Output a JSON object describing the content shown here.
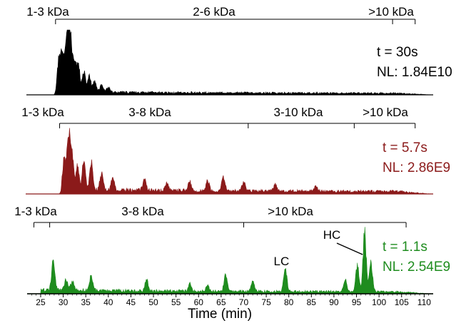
{
  "chart_data": {
    "type": "area",
    "xlabel": "Time (min)",
    "xlim": [
      22,
      112
    ],
    "xticks": [
      25,
      30,
      35,
      40,
      45,
      50,
      55,
      60,
      65,
      70,
      75,
      80,
      85,
      90,
      95,
      100,
      105,
      110
    ],
    "panels": [
      {
        "t_label": "t = 30s",
        "nl_label": "NL: 1.84E10",
        "color": "#000000",
        "trace_start": 28,
        "ranges": [
          {
            "label": "1-3 kDa",
            "start": 28.3,
            "end": 28.3
          },
          {
            "label": "2-6 kDa",
            "start": 28.3,
            "end": 103
          },
          {
            "label": ">10 kDa",
            "start": 103,
            "end": 108
          }
        ],
        "peaks": [
          {
            "x": 29.0,
            "h": 0.55
          },
          {
            "x": 29.8,
            "h": 0.7
          },
          {
            "x": 30.6,
            "h": 0.58
          },
          {
            "x": 31.2,
            "h": 1.0
          },
          {
            "x": 31.8,
            "h": 0.62
          },
          {
            "x": 32.6,
            "h": 0.5
          },
          {
            "x": 33.4,
            "h": 0.44
          },
          {
            "x": 34.6,
            "h": 0.36
          },
          {
            "x": 35.8,
            "h": 0.28
          },
          {
            "x": 37.0,
            "h": 0.2
          },
          {
            "x": 38.5,
            "h": 0.14
          },
          {
            "x": 40.0,
            "h": 0.1
          }
        ],
        "baseline": 0.04
      },
      {
        "t_label": "t = 5.7s",
        "nl_label": "NL: 2.86E9",
        "color": "#8b1a1a",
        "trace_start": 29,
        "ranges": [
          {
            "label": "1-3 kDa",
            "start": 29.2,
            "end": 29.2
          },
          {
            "label": "3-8 kDa",
            "start": 29.2,
            "end": 71
          },
          {
            "label": "3-10 kDa",
            "start": 71,
            "end": 94.5
          },
          {
            "label": ">10 kDa",
            "start": 94.5,
            "end": 108
          }
        ],
        "peaks": [
          {
            "x": 30.2,
            "h": 0.5
          },
          {
            "x": 31.2,
            "h": 1.0
          },
          {
            "x": 32.0,
            "h": 0.6
          },
          {
            "x": 33.2,
            "h": 0.42
          },
          {
            "x": 34.6,
            "h": 0.52
          },
          {
            "x": 36.2,
            "h": 0.46
          },
          {
            "x": 38.5,
            "h": 0.3
          },
          {
            "x": 41.0,
            "h": 0.2
          },
          {
            "x": 48.0,
            "h": 0.2
          },
          {
            "x": 53.0,
            "h": 0.14
          },
          {
            "x": 58.0,
            "h": 0.16
          },
          {
            "x": 62.0,
            "h": 0.18
          },
          {
            "x": 65.5,
            "h": 0.26
          },
          {
            "x": 70.0,
            "h": 0.16
          },
          {
            "x": 77.0,
            "h": 0.12
          },
          {
            "x": 86.0,
            "h": 0.08
          }
        ],
        "baseline": 0.06
      },
      {
        "t_label": "t = 1.1s",
        "nl_label": "NL: 2.54E9",
        "color": "#1e8c1e",
        "trace_start": 24.5,
        "ranges": [
          {
            "label": "1-3 kDa",
            "start": 23.5,
            "end": 27
          },
          {
            "label": "3-8 kDa",
            "start": 27,
            "end": 70
          },
          {
            "label": ">10 kDa",
            "start": 70,
            "end": 106
          }
        ],
        "annotations": [
          {
            "label": "LC",
            "x": 79
          },
          {
            "label": "HC",
            "x": 97
          }
        ],
        "peaks": [
          {
            "x": 27.8,
            "h": 0.5
          },
          {
            "x": 30.6,
            "h": 0.18
          },
          {
            "x": 32.0,
            "h": 0.16
          },
          {
            "x": 36.2,
            "h": 0.26
          },
          {
            "x": 48.5,
            "h": 0.2
          },
          {
            "x": 58.0,
            "h": 0.12
          },
          {
            "x": 62.0,
            "h": 0.1
          },
          {
            "x": 66.0,
            "h": 0.28
          },
          {
            "x": 72.0,
            "h": 0.18
          },
          {
            "x": 79.2,
            "h": 0.42
          },
          {
            "x": 92.5,
            "h": 0.2
          },
          {
            "x": 95.2,
            "h": 0.45
          },
          {
            "x": 96.8,
            "h": 1.0
          },
          {
            "x": 98.2,
            "h": 0.5
          }
        ],
        "baseline": 0.05
      }
    ]
  }
}
